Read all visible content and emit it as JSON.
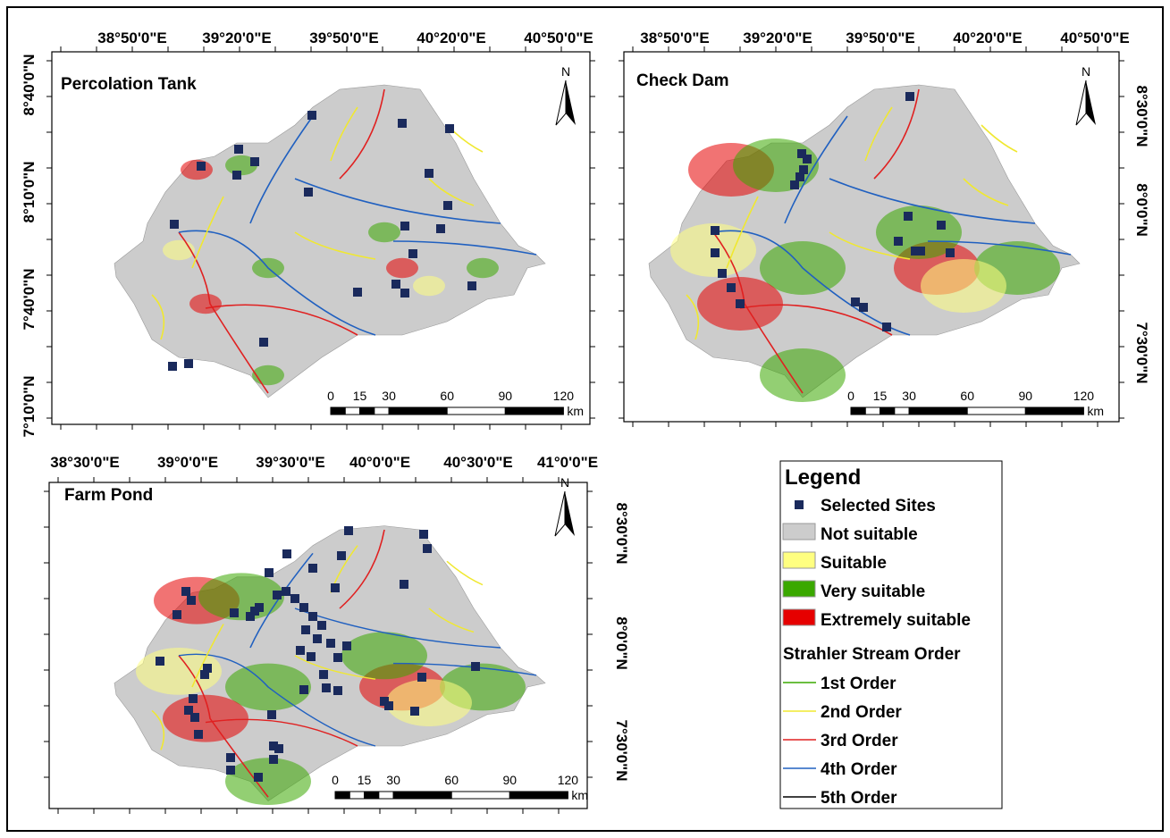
{
  "panels": [
    {
      "title": "Percolation Tank",
      "top_labels": [
        "38°50'0\"E",
        "39°20'0\"E",
        "39°50'0\"E",
        "40°20'0\"E",
        "40°50'0\"E"
      ],
      "side_labels": [
        "8°40'0\"N",
        "8°10'0\"N",
        "7°40'0\"N",
        "7°10'0\"N"
      ]
    },
    {
      "title": "Check Dam",
      "top_labels": [
        "38°50'0\"E",
        "39°20'0\"E",
        "39°50'0\"E",
        "40°20'0\"E",
        "40°50'0\"E"
      ],
      "side_labels": [
        "8°30'0\"N",
        "8°0'0\"N",
        "7°30'0\"N"
      ]
    },
    {
      "title": "Farm Pond",
      "top_labels": [
        "38°30'0\"E",
        "39°0'0\"E",
        "39°30'0\"E",
        "40°0'0\"E",
        "40°30'0\"E",
        "41°0'0\"E"
      ],
      "side_labels": [
        "8°30'0\"N",
        "8°0'0\"N",
        "7°30'0\"N"
      ]
    }
  ],
  "north": "N",
  "scale_bar": {
    "labels": [
      "0",
      "15",
      "30",
      "60",
      "90",
      "120"
    ],
    "unit": "km"
  },
  "legend": {
    "title": "Legend",
    "items": [
      {
        "label": "Selected Sites",
        "kind": "marker",
        "color": "#1a2a5c"
      },
      {
        "label": "Not suitable",
        "kind": "fill",
        "color": "#cccccc"
      },
      {
        "label": "Suitable",
        "kind": "fill",
        "color": "#ffff80"
      },
      {
        "label": "Very suitable",
        "kind": "fill",
        "color": "#3aa800"
      },
      {
        "label": "Extremely suitable",
        "kind": "fill",
        "color": "#e60000"
      }
    ],
    "stream_title": "Strahler Stream Order",
    "streams": [
      {
        "label": "1st Order",
        "color": "#3aa800"
      },
      {
        "label": "2nd Order",
        "color": "#f0e830"
      },
      {
        "label": "3rd Order",
        "color": "#e02020"
      },
      {
        "label": "4th Order",
        "color": "#2060c0"
      },
      {
        "label": "5th Order",
        "color": "#000000"
      }
    ]
  }
}
